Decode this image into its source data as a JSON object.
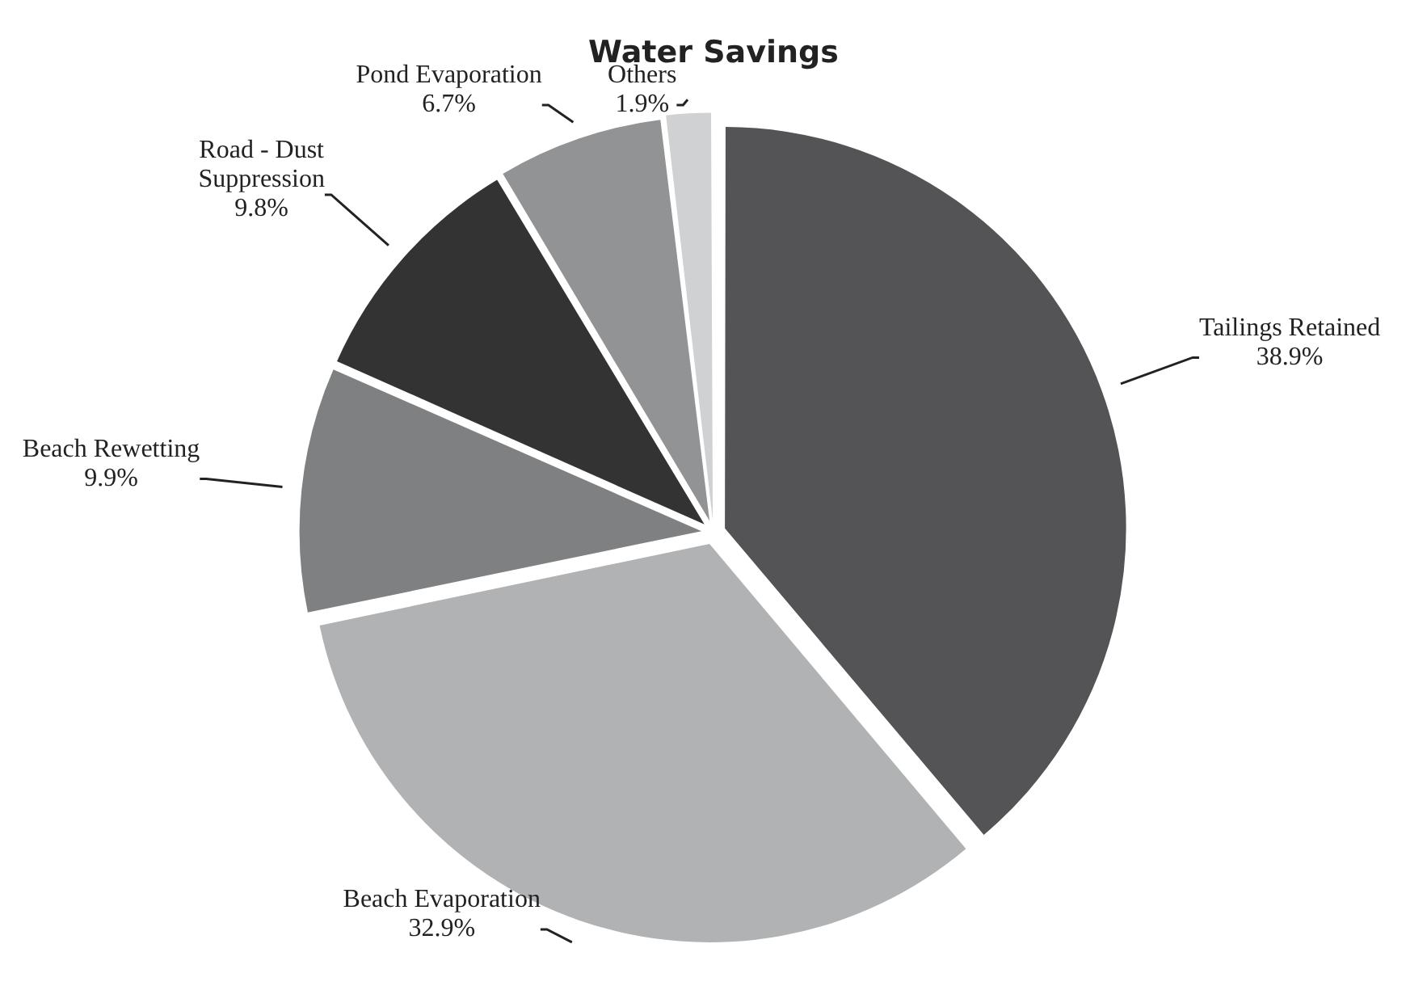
{
  "chart_data": {
    "type": "pie",
    "title": "Water Savings",
    "categories": [
      "Tailings Retained",
      "Beach Evaporation",
      "Beach Rewetting",
      "Road - Dust Suppression",
      "Pond Evaporation",
      "Others"
    ],
    "values": [
      38.9,
      32.9,
      9.9,
      9.8,
      6.7,
      1.9
    ],
    "colors": [
      "#545456",
      "#b1b2b4",
      "#7f8082",
      "#333333",
      "#929395",
      "#d0d1d3"
    ],
    "value_labels": [
      "38.9%",
      "32.9%",
      "9.9%",
      "9.8%",
      "6.7%",
      "1.9%"
    ],
    "legend": false
  }
}
